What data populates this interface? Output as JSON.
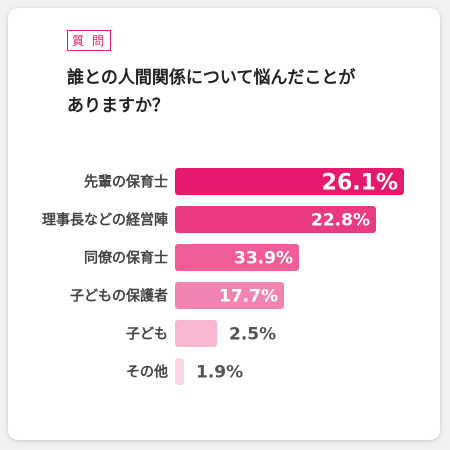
{
  "tag": "質 問",
  "question": {
    "line1": "誰との人間関係について悩んだことが",
    "line2": "ありますか？"
  },
  "chart_data": {
    "type": "bar",
    "orientation": "horizontal",
    "categories": [
      "先輩の保育士",
      "理事長などの経営陣",
      "同僚の保育士",
      "子どもの保護者",
      "子ども",
      "その他"
    ],
    "series": [
      {
        "values": [
          26.1,
          22.8,
          33.9,
          17.7,
          2.5,
          1.9
        ],
        "labels": [
          "26.1%",
          "22.8%",
          "33.9%",
          "17.7%",
          "2.5%",
          "1.9%"
        ],
        "colors": [
          "#e5196e",
          "#ea3a82",
          "#ef5c98",
          "#f284b1",
          "#f8b8d2",
          "#fbd8e6"
        ]
      }
    ],
    "grid": false,
    "legend": "none"
  }
}
